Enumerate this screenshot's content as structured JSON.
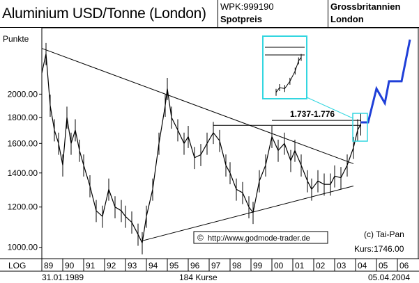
{
  "header": {
    "title": "Aluminium USD/Tonne (London)",
    "wpk": "WPK:999190",
    "price_type": "Spotpreis",
    "country": "Grossbritannien",
    "city": "London"
  },
  "chart_data": {
    "type": "line",
    "y_unit_label": "Punkte",
    "y_scale": "log",
    "ylim": [
      950,
      2700
    ],
    "y_ticks": [
      1000,
      1200,
      1400,
      1600,
      1800,
      2000
    ],
    "y_tick_labels": [
      "1000.00",
      "1200.00",
      "1400.00",
      "1600.00",
      "1800.00",
      "2000.00"
    ],
    "x_tick_labels": [
      "89",
      "90",
      "91",
      "92",
      "93",
      "94",
      "95",
      "96",
      "97",
      "98",
      "99",
      "00",
      "01",
      "02",
      "03",
      "04",
      "05",
      "06"
    ],
    "xlim": [
      1989.0,
      2007.0
    ],
    "start_date": "31.01.1989",
    "end_date": "05.04.2004",
    "count_label": "184 Kurse",
    "axis_mode": "LOG",
    "copyright": "(c) Tai-Pan",
    "last_price": "Kurs:1746.00",
    "url": "http://www.godmode-trader.de",
    "annotation": "1.737-1.776",
    "series": [
      {
        "x": [
          1989.0,
          1989.2,
          1989.4,
          1989.6,
          1989.8,
          1990.0,
          1990.2,
          1990.4,
          1990.6,
          1990.8,
          1991.0,
          1991.3,
          1991.6,
          1991.9,
          1992.2,
          1992.5,
          1992.8,
          1993.0,
          1993.3,
          1993.6,
          1993.8,
          1994.0,
          1994.3,
          1994.6,
          1994.9,
          1995.0,
          1995.2,
          1995.5,
          1995.8,
          1996.0,
          1996.3,
          1996.6,
          1996.9,
          1997.2,
          1997.5,
          1997.8,
          1998.0,
          1998.3,
          1998.6,
          1998.9,
          1999.1,
          1999.4,
          1999.7,
          2000.0,
          2000.3,
          2000.6,
          2000.9,
          2001.1,
          2001.4,
          2001.7,
          2001.9,
          2002.2,
          2002.5,
          2002.8,
          2003.0,
          2003.3,
          2003.6,
          2003.9,
          2004.1,
          2004.25
        ],
        "y": [
          2200,
          2400,
          1900,
          1700,
          1600,
          1450,
          1800,
          1600,
          1700,
          1550,
          1450,
          1320,
          1180,
          1150,
          1300,
          1200,
          1180,
          1150,
          1120,
          1060,
          1020,
          1150,
          1300,
          1600,
          1900,
          2050,
          1800,
          1700,
          1600,
          1650,
          1500,
          1520,
          1600,
          1680,
          1620,
          1450,
          1400,
          1300,
          1280,
          1200,
          1170,
          1350,
          1450,
          1650,
          1550,
          1600,
          1480,
          1550,
          1450,
          1350,
          1300,
          1350,
          1330,
          1330,
          1380,
          1370,
          1450,
          1570,
          1700,
          1746
        ]
      }
    ],
    "overlay_lines": [
      {
        "x": [
          1989.0,
          2003.9
        ],
        "y": [
          2460,
          1460
        ]
      },
      {
        "x": [
          1993.8,
          2003.9
        ],
        "y": [
          1030,
          1320
        ]
      },
      {
        "x": [
          1997.2,
          2004.25
        ],
        "y": [
          1737,
          1737
        ]
      },
      {
        "x": [
          2000.0,
          2004.25
        ],
        "y": [
          1776,
          1776
        ]
      }
    ],
    "projection": {
      "x": [
        2004.25,
        2004.6,
        2005.0,
        2005.4,
        2005.6,
        2006.2,
        2006.6
      ],
      "y": [
        1760,
        1760,
        2050,
        1920,
        2120,
        2120,
        2560
      ]
    }
  }
}
